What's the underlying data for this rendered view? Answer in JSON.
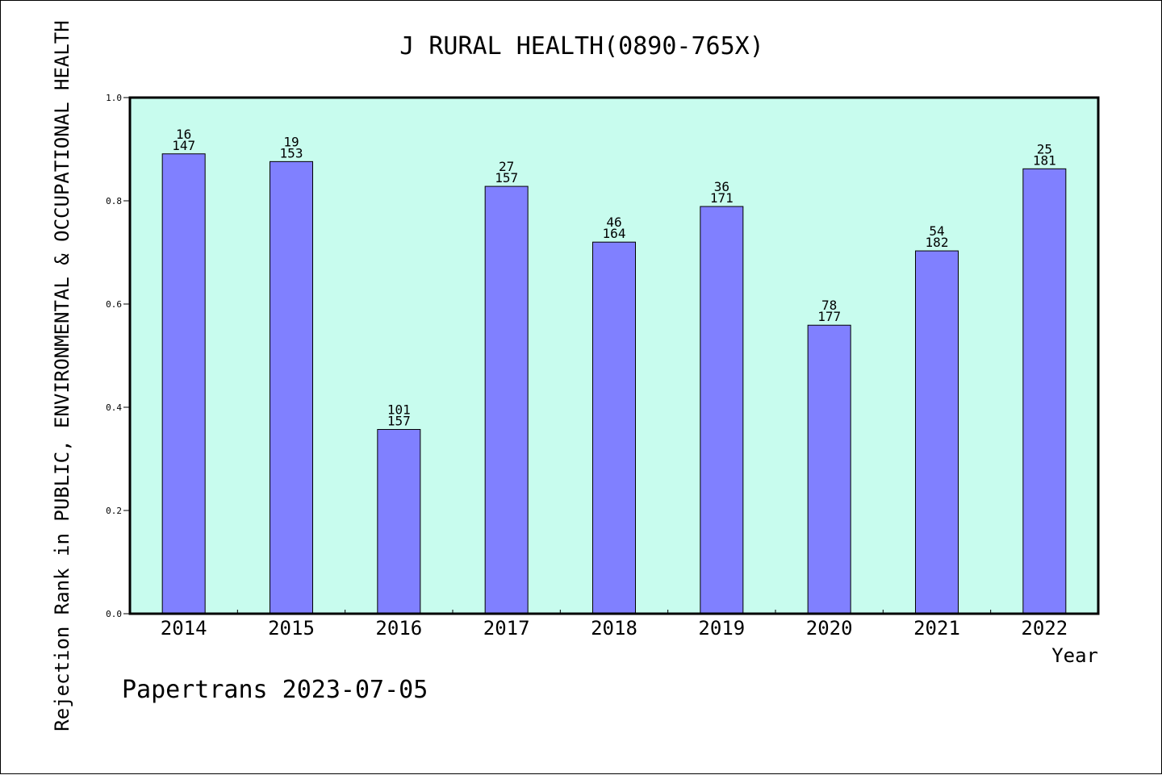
{
  "chart_data": {
    "type": "bar",
    "title": "J RURAL HEALTH(0890-765X)",
    "xlabel": "Year",
    "ylabel": "Rejection Rank in PUBLIC, ENVIRONMENTAL & OCCUPATIONAL HEALTH",
    "categories": [
      "2014",
      "2015",
      "2016",
      "2017",
      "2018",
      "2019",
      "2020",
      "2021",
      "2022"
    ],
    "values": [
      0.891,
      0.876,
      0.357,
      0.828,
      0.72,
      0.789,
      0.559,
      0.703,
      0.862
    ],
    "bar_labels": [
      {
        "rank": "16",
        "total": "147"
      },
      {
        "rank": "19",
        "total": "153"
      },
      {
        "rank": "101",
        "total": "157"
      },
      {
        "rank": "27",
        "total": "157"
      },
      {
        "rank": "46",
        "total": "164"
      },
      {
        "rank": "36",
        "total": "171"
      },
      {
        "rank": "78",
        "total": "177"
      },
      {
        "rank": "54",
        "total": "182"
      },
      {
        "rank": "25",
        "total": "181"
      }
    ],
    "ylim": [
      0.0,
      1.0
    ],
    "yticks": [
      "0.0",
      "0.2",
      "0.4",
      "0.6",
      "0.8",
      "1.0"
    ],
    "grid": false,
    "colors": {
      "plot_background": "#c8fcee",
      "bar_fill": "#8080ff",
      "bar_stroke": "#000000"
    }
  },
  "footer": {
    "credit": "Papertrans 2023-07-05"
  }
}
